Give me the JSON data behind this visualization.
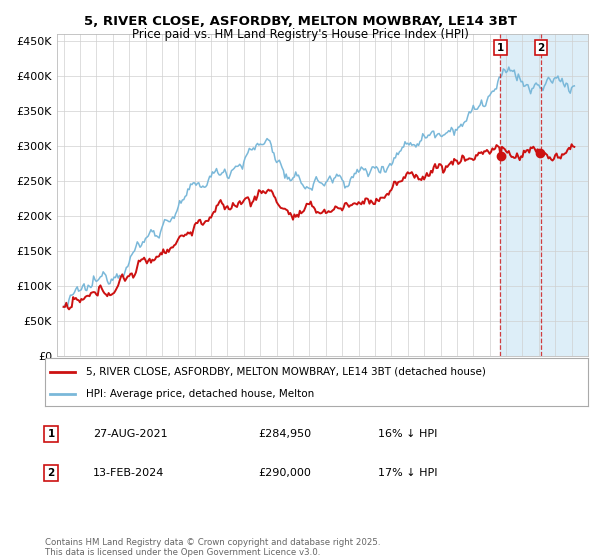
{
  "title": "5, RIVER CLOSE, ASFORDBY, MELTON MOWBRAY, LE14 3BT",
  "subtitle": "Price paid vs. HM Land Registry's House Price Index (HPI)",
  "hpi_color": "#7ab8d9",
  "price_color": "#cc1111",
  "background_color": "#ffffff",
  "plot_bg_color": "#ffffff",
  "highlight_bg_color": "#ddeef8",
  "ylabel_ticks": [
    "£0",
    "£50K",
    "£100K",
    "£150K",
    "£200K",
    "£250K",
    "£300K",
    "£350K",
    "£400K",
    "£450K"
  ],
  "ytick_values": [
    0,
    50000,
    100000,
    150000,
    200000,
    250000,
    300000,
    350000,
    400000,
    450000
  ],
  "xstart_year": 1995,
  "xend_year": 2027,
  "sale1_date": 2021.65,
  "sale1_price": 284950,
  "sale2_date": 2024.12,
  "sale2_price": 290000,
  "legend_line1": "5, RIVER CLOSE, ASFORDBY, MELTON MOWBRAY, LE14 3BT (detached house)",
  "legend_line2": "HPI: Average price, detached house, Melton",
  "annotation1": "27-AUG-2021",
  "annotation1_price": "£284,950",
  "annotation1_hpi": "16% ↓ HPI",
  "annotation2": "13-FEB-2024",
  "annotation2_price": "£290,000",
  "annotation2_hpi": "17% ↓ HPI",
  "footer": "Contains HM Land Registry data © Crown copyright and database right 2025.\nThis data is licensed under the Open Government Licence v3.0."
}
